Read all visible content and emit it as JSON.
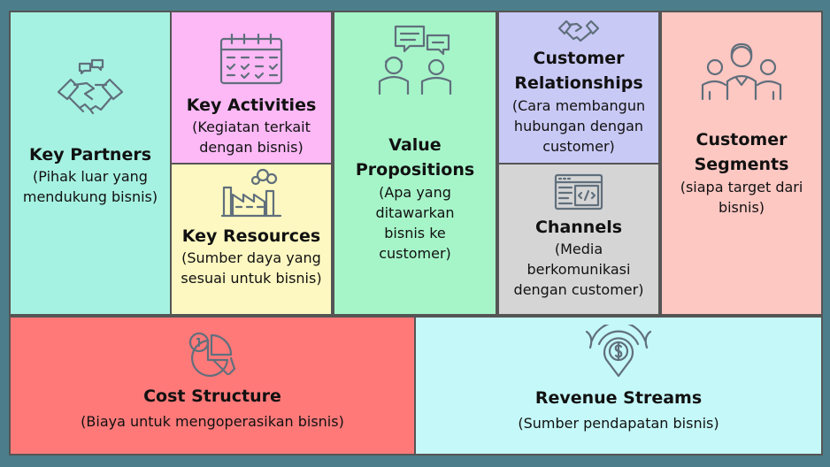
{
  "colors": {
    "key_partners": "#a6f2e2",
    "key_activities": "#fcb9f6",
    "key_resources": "#fdf8c1",
    "value_propositions": "#a6f5c9",
    "customer_relationships": "#c9c9f6",
    "channels": "#d5d5d5",
    "customer_segments": "#fdc7c2",
    "cost_structure": "#ff7979",
    "revenue_streams": "#c5f8f8",
    "frame": "#4b7e8a",
    "icon_stroke": "#606f7c"
  },
  "blocks": {
    "key_partners": {
      "title": "Key Partners",
      "desc": "(Pihak luar yang\nmendukung bisnis)",
      "icon": "handshake-icon"
    },
    "key_activities": {
      "title": "Key Activities",
      "desc": "(Kegiatan terkait\ndengan bisnis)",
      "icon": "calendar-icon"
    },
    "key_resources": {
      "title": "Key Resources",
      "desc": "(Sumber daya yang\nsesuai untuk bisnis)",
      "icon": "factory-icon"
    },
    "value_propositions": {
      "title": "Value\nPropositions",
      "desc": "(Apa yang\nditawarkan\nbisnis ke\ncustomer)",
      "icon": "conversation-icon"
    },
    "customer_relationships": {
      "title": "Customer\nRelationships",
      "desc": "(Cara membangun\nhubungan dengan\ncustomer)",
      "icon": "handshake-icon"
    },
    "channels": {
      "title": "Channels",
      "desc": "(Media\nberkomunikasi\ndengan customer)",
      "icon": "code-window-icon"
    },
    "customer_segments": {
      "title": "Customer\nSegments",
      "desc": "(siapa target dari\nbisnis)",
      "icon": "people-group-icon"
    },
    "cost_structure": {
      "title": "Cost Structure",
      "desc": "(Biaya untuk mengoperasikan bisnis)",
      "icon": "pie-chart-icon"
    },
    "revenue_streams": {
      "title": "Revenue Streams",
      "desc": "(Sumber pendapatan bisnis)",
      "icon": "money-signal-icon"
    }
  }
}
